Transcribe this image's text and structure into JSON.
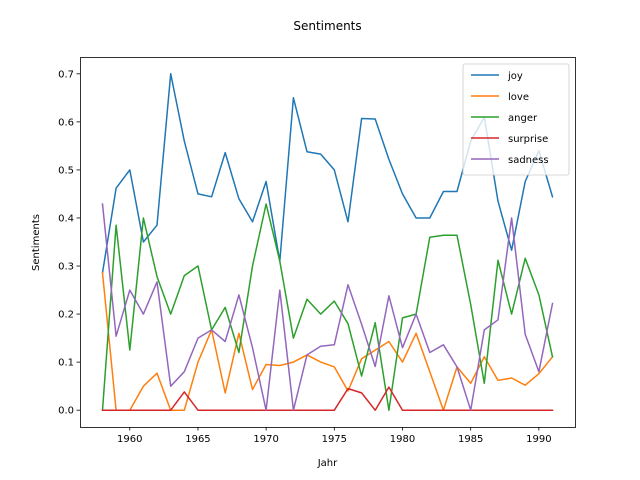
{
  "chart_data": {
    "type": "line",
    "title": "Sentiments",
    "xlabel": "Jahr",
    "ylabel": "Sentiments",
    "xlim": [
      1956.35,
      1992.65
    ],
    "ylim": [
      -0.035,
      0.735
    ],
    "xticks": [
      1960,
      1965,
      1970,
      1975,
      1980,
      1985,
      1990
    ],
    "yticks": [
      0.0,
      0.1,
      0.2,
      0.3,
      0.4,
      0.5,
      0.6,
      0.7
    ],
    "ytick_labels": [
      "0.0",
      "0.1",
      "0.2",
      "0.3",
      "0.4",
      "0.5",
      "0.6",
      "0.7"
    ],
    "grid": false,
    "legend_position": "top-right",
    "x": [
      1958,
      1959,
      1960,
      1961,
      1962,
      1963,
      1964,
      1965,
      1966,
      1967,
      1968,
      1969,
      1970,
      1971,
      1972,
      1973,
      1974,
      1975,
      1976,
      1977,
      1978,
      1979,
      1980,
      1981,
      1982,
      1983,
      1984,
      1985,
      1986,
      1987,
      1988,
      1989,
      1990,
      1991
    ],
    "series": [
      {
        "name": "joy",
        "color": "#1f77b4",
        "values": [
          0.286,
          0.462,
          0.5,
          0.35,
          0.385,
          0.7,
          0.56,
          0.45,
          0.444,
          0.536,
          0.44,
          0.392,
          0.476,
          0.31,
          0.65,
          0.538,
          0.533,
          0.5,
          0.392,
          0.607,
          0.606,
          0.522,
          0.45,
          0.4,
          0.4,
          0.455,
          0.455,
          0.56,
          0.61,
          0.435,
          0.333,
          0.476,
          0.54,
          0.444
        ]
      },
      {
        "name": "love",
        "color": "#ff7f0e",
        "values": [
          0.286,
          0.0,
          0.0,
          0.05,
          0.077,
          0.0,
          0.0,
          0.1,
          0.167,
          0.036,
          0.16,
          0.043,
          0.095,
          0.093,
          0.1,
          0.115,
          0.1,
          0.09,
          0.04,
          0.107,
          0.125,
          0.143,
          0.1,
          0.16,
          0.08,
          0.0,
          0.09,
          0.056,
          0.111,
          0.062,
          0.067,
          0.052,
          0.076,
          0.111
        ]
      },
      {
        "name": "anger",
        "color": "#2ca02c",
        "values": [
          0.0,
          0.385,
          0.125,
          0.4,
          0.278,
          0.2,
          0.28,
          0.3,
          0.167,
          0.214,
          0.12,
          0.3,
          0.429,
          0.31,
          0.15,
          0.231,
          0.2,
          0.227,
          0.18,
          0.071,
          0.182,
          0.0,
          0.192,
          0.2,
          0.36,
          0.364,
          0.364,
          0.22,
          0.056,
          0.312,
          0.2,
          0.316,
          0.24,
          0.111
        ]
      },
      {
        "name": "surprise",
        "color": "#d62728",
        "values": [
          0.0,
          0.0,
          0.0,
          0.0,
          0.0,
          0.0,
          0.038,
          0.0,
          0.0,
          0.0,
          0.0,
          0.0,
          0.0,
          0.0,
          0.0,
          0.0,
          0.0,
          0.0,
          0.045,
          0.036,
          0.0,
          0.048,
          0.0,
          0.0,
          0.0,
          0.0,
          0.0,
          0.0,
          0.0,
          0.0,
          0.0,
          0.0,
          0.0,
          0.0
        ]
      },
      {
        "name": "sadness",
        "color": "#9467bd",
        "values": [
          0.429,
          0.154,
          0.25,
          0.2,
          0.267,
          0.05,
          0.08,
          0.15,
          0.167,
          0.143,
          0.24,
          0.13,
          0.0,
          0.25,
          0.0,
          0.115,
          0.133,
          0.136,
          0.261,
          0.179,
          0.091,
          0.238,
          0.13,
          0.2,
          0.12,
          0.136,
          0.09,
          0.0,
          0.167,
          0.188,
          0.4,
          0.158,
          0.08,
          0.222
        ]
      }
    ]
  }
}
